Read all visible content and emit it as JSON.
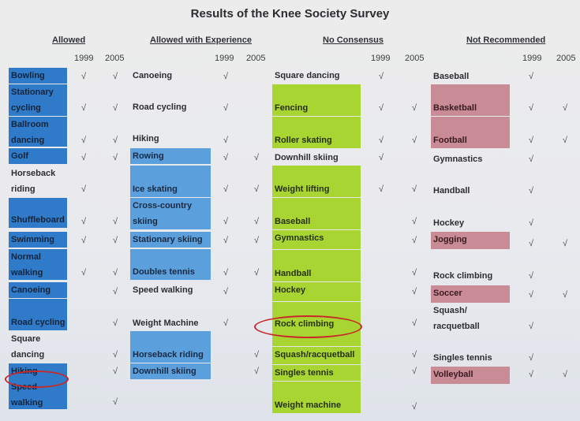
{
  "title": "Results of the Knee Society Survey",
  "headers": [
    "Allowed",
    "Allowed with Experience",
    "No Consensus",
    "Not Recommended"
  ],
  "years": [
    "1999",
    "2005"
  ],
  "check_mark": "√",
  "allowed": [
    {
      "l1": "Bowling",
      "l2": ""
    },
    {
      "l1": "Stationary",
      "l2": "cycling"
    },
    {
      "l1": "Ballroom",
      "l2": "dancing"
    },
    {
      "l1": "Golf",
      "l2": ""
    },
    {
      "l1": "Horseback",
      "l2": "riding"
    },
    {
      "l1": "Shuffleboard",
      "l2": ""
    },
    {
      "l1": "Swimming",
      "l2": ""
    },
    {
      "l1": "Normal",
      "l2": "walking"
    },
    {
      "l1": "Canoeing",
      "l2": ""
    },
    {
      "l1": "",
      "l2": "Road cycling"
    },
    {
      "l1": "Square",
      "l2": "dancing"
    },
    {
      "l1": "Hiking",
      "l2": ""
    },
    {
      "l1": "Speed",
      "l2": "walking"
    }
  ],
  "experience": [
    {
      "l1": "Canoeing",
      "l2": ""
    },
    {
      "l1": "Road cycling",
      "l2": ""
    },
    {
      "l1": "Hiking",
      "l2": ""
    },
    {
      "l1": "Rowing",
      "l2": ""
    },
    {
      "l1": "",
      "l2": "Ice skating"
    },
    {
      "l1": "Cross-country",
      "l2": "skiing"
    },
    {
      "l1": "Stationary skiing",
      "l2": ""
    },
    {
      "l1": "",
      "l2": "Doubles tennis"
    },
    {
      "l1": "Speed walking",
      "l2": ""
    },
    {
      "l1": "Weight Machine",
      "l2": ""
    },
    {
      "l1": "Horseback riding",
      "l2": ""
    },
    {
      "l1": "Downhill skiing",
      "l2": ""
    }
  ],
  "consensus": [
    {
      "l1": "Square dancing",
      "l2": ""
    },
    {
      "l1": "",
      "l2": "Fencing"
    },
    {
      "l1": "",
      "l2": "Roller skating"
    },
    {
      "l1": "Downhill skiing",
      "l2": ""
    },
    {
      "l1": "",
      "l2": "Weight lifting"
    },
    {
      "l1": "",
      "l2": "Baseball"
    },
    {
      "l1": "Gymnastics",
      "l2": ""
    },
    {
      "l1": "",
      "l2": "Handball"
    },
    {
      "l1": "Hockey",
      "l2": ""
    },
    {
      "l1": "Rock climbing",
      "l2": ""
    },
    {
      "l1": "Squash/racquetball",
      "l2": ""
    },
    {
      "l1": "Singles tennis",
      "l2": ""
    },
    {
      "l1": "",
      "l2": "Weight machine"
    }
  ],
  "not_recommended": [
    {
      "l1": "Baseball",
      "l2": ""
    },
    {
      "l1": "",
      "l2": "Basketball"
    },
    {
      "l1": "",
      "l2": "Football"
    },
    {
      "l1": "Gymnastics",
      "l2": ""
    },
    {
      "l1": "Handball",
      "l2": ""
    },
    {
      "l1": "Hockey",
      "l2": ""
    },
    {
      "l1": "Jogging",
      "l2": ""
    },
    {
      "l1": "Rock climbing",
      "l2": ""
    },
    {
      "l1": "Soccer",
      "l2": ""
    },
    {
      "l1": "Squash/",
      "l2": "racquetball"
    },
    {
      "l1": "Singles tennis",
      "l2": ""
    },
    {
      "l1": "Volleyball",
      "l2": ""
    }
  ],
  "colors": {
    "allowed": "#2f7ac9",
    "experience": "#5b9fdc",
    "consensus": "#a8d531",
    "not_recommended": "#c98b96",
    "highlight_ellipse": "#c8282a"
  }
}
